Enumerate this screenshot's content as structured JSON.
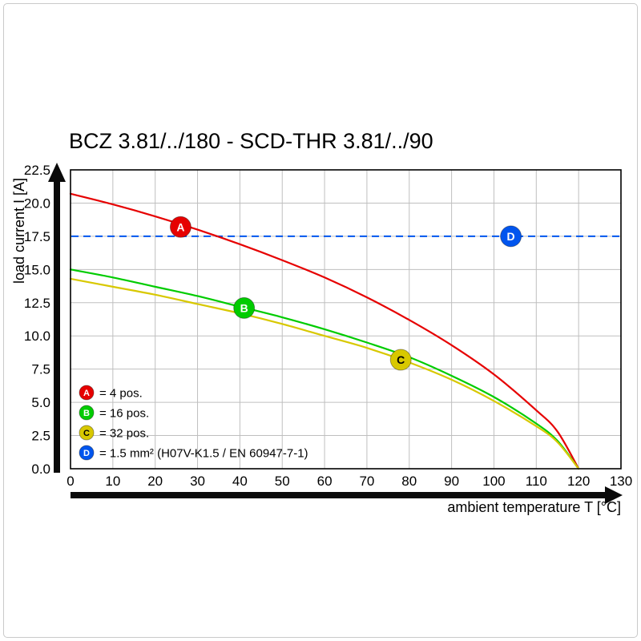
{
  "frame": {
    "border_color": "#c9c9c9"
  },
  "chart_data": {
    "type": "line",
    "title": "BCZ 3.81/../180 - SCD-THR 3.81/../90",
    "xlabel": "ambient temperature T [°C]",
    "ylabel": "load current I [A]",
    "xlim": [
      0,
      130
    ],
    "ylim": [
      0,
      22.5
    ],
    "grid": true,
    "legend_position": "inside-bottom-left",
    "xticks": [
      0,
      10,
      20,
      30,
      40,
      50,
      60,
      70,
      80,
      90,
      100,
      110,
      120,
      130
    ],
    "yticks": [
      0,
      2.5,
      5,
      7.5,
      10,
      12.5,
      15,
      17.5,
      20,
      22.5
    ],
    "ytick_labels": [
      "0.0",
      "2.5",
      "5.0",
      "7.5",
      "10.0",
      "12.5",
      "15.0",
      "17.5",
      "20.0",
      "22.5"
    ],
    "series": [
      {
        "name": "A",
        "label": "= 4 pos.",
        "color": "#e60000",
        "letter_color": "#ffffff",
        "kind": "curve",
        "marker_at": [
          26,
          18.2
        ],
        "points": [
          [
            0,
            20.7
          ],
          [
            10,
            19.9
          ],
          [
            20,
            19.0
          ],
          [
            30,
            18.0
          ],
          [
            40,
            16.9
          ],
          [
            50,
            15.7
          ],
          [
            60,
            14.4
          ],
          [
            70,
            12.9
          ],
          [
            80,
            11.2
          ],
          [
            90,
            9.3
          ],
          [
            100,
            7.1
          ],
          [
            110,
            4.4
          ],
          [
            115,
            2.8
          ],
          [
            120,
            0
          ]
        ]
      },
      {
        "name": "B",
        "label": "= 16 pos.",
        "color": "#00cc00",
        "letter_color": "#ffffff",
        "kind": "curve",
        "marker_at": [
          41,
          12.1
        ],
        "points": [
          [
            0,
            15.0
          ],
          [
            10,
            14.4
          ],
          [
            20,
            13.7
          ],
          [
            30,
            13.0
          ],
          [
            40,
            12.2
          ],
          [
            50,
            11.4
          ],
          [
            60,
            10.5
          ],
          [
            70,
            9.5
          ],
          [
            80,
            8.4
          ],
          [
            90,
            7.0
          ],
          [
            100,
            5.4
          ],
          [
            110,
            3.4
          ],
          [
            115,
            2.1
          ],
          [
            120,
            0
          ]
        ]
      },
      {
        "name": "C",
        "label": "= 32 pos.",
        "color": "#d8c800",
        "letter_color": "#000000",
        "kind": "curve",
        "marker_at": [
          78,
          8.2
        ],
        "points": [
          [
            0,
            14.3
          ],
          [
            10,
            13.7
          ],
          [
            20,
            13.1
          ],
          [
            30,
            12.4
          ],
          [
            40,
            11.7
          ],
          [
            50,
            10.9
          ],
          [
            60,
            10.0
          ],
          [
            70,
            9.1
          ],
          [
            80,
            8.0
          ],
          [
            90,
            6.7
          ],
          [
            100,
            5.1
          ],
          [
            110,
            3.2
          ],
          [
            115,
            2.0
          ],
          [
            120,
            0
          ]
        ]
      },
      {
        "name": "D",
        "label": "= 1.5 mm² (H07V-K1.5 / EN 60947-7-1)",
        "color": "#0055ee",
        "letter_color": "#ffffff",
        "kind": "threshold",
        "y": 17.5,
        "marker_at": [
          104,
          17.5
        ]
      }
    ]
  }
}
